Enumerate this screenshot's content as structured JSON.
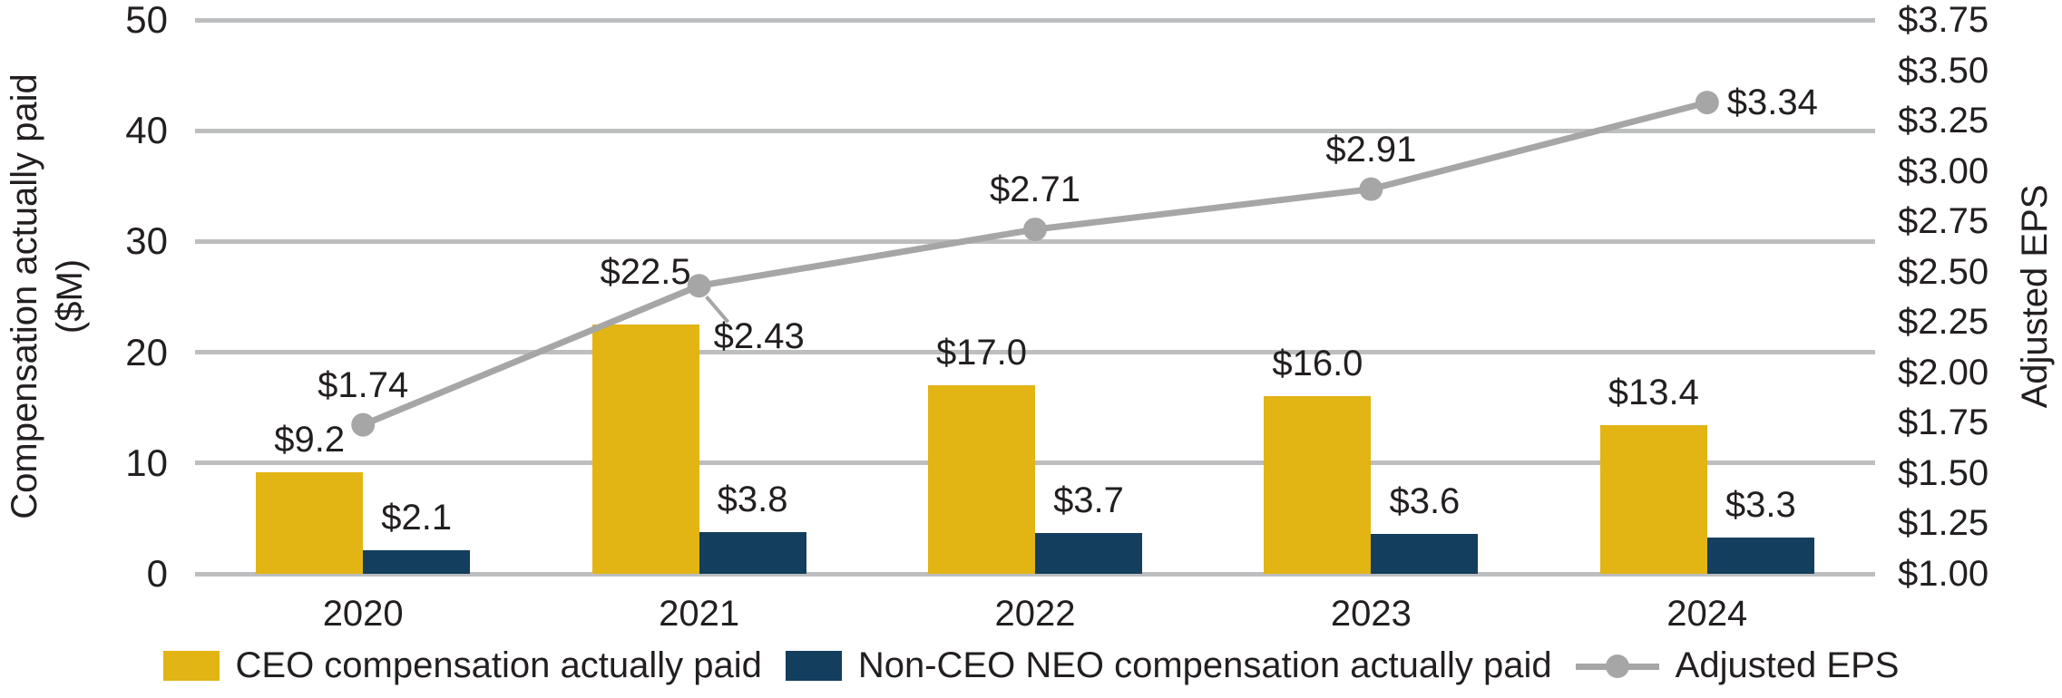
{
  "chart_data": {
    "type": "bar",
    "title": "",
    "categories": [
      "2020",
      "2021",
      "2022",
      "2023",
      "2024"
    ],
    "series": [
      {
        "name": "CEO compensation actually paid",
        "type": "bar",
        "axis": "left",
        "color_key": "gold",
        "values": [
          9.2,
          22.5,
          17.0,
          16.0,
          13.4
        ],
        "labels": [
          "$9.2",
          "$22.5",
          "$17.0",
          "$16.0",
          "$13.4"
        ],
        "label_dy": [
          0,
          -22,
          0,
          0,
          0
        ]
      },
      {
        "name": "Non-CEO NEO compensation actually paid",
        "type": "bar",
        "axis": "left",
        "color_key": "navy",
        "values": [
          2.1,
          3.8,
          3.7,
          3.6,
          3.3
        ],
        "labels": [
          "$2.1",
          "$3.8",
          "$3.7",
          "$3.6",
          "$3.3"
        ],
        "label_dy": [
          0,
          0,
          0,
          0,
          0
        ]
      },
      {
        "name": "Adjusted EPS",
        "type": "line",
        "axis": "right",
        "color_key": "gray",
        "values": [
          1.74,
          2.43,
          2.71,
          2.91,
          3.34
        ],
        "labels": [
          "$1.74",
          "$2.43",
          "$2.71",
          "$2.91",
          "$3.34"
        ],
        "label_placement": [
          "above",
          "below-right",
          "above",
          "above",
          "right"
        ]
      }
    ],
    "left_axis": {
      "title_lines": [
        "Compensation actually paid",
        "($M)"
      ],
      "ticks": [
        0,
        10,
        20,
        30,
        40,
        50
      ],
      "range": [
        0,
        50
      ]
    },
    "right_axis": {
      "title": "Adjusted EPS",
      "ticks_top_to_bottom": [
        "$3.75",
        "$3.50",
        "$3.25",
        "$3.00",
        "$2.75",
        "$2.50",
        "$2.25",
        "$2.00",
        "$1.75",
        "$1.50",
        "$1.25",
        "$1.00"
      ],
      "range": [
        1.0,
        3.75
      ]
    },
    "colors": {
      "gold": "#E2B414",
      "navy": "#133E5E",
      "gray": "#A6A6A6",
      "grid": "#BDBEC0",
      "text": "#231F20"
    },
    "grid": true,
    "legend_position": "bottom"
  }
}
